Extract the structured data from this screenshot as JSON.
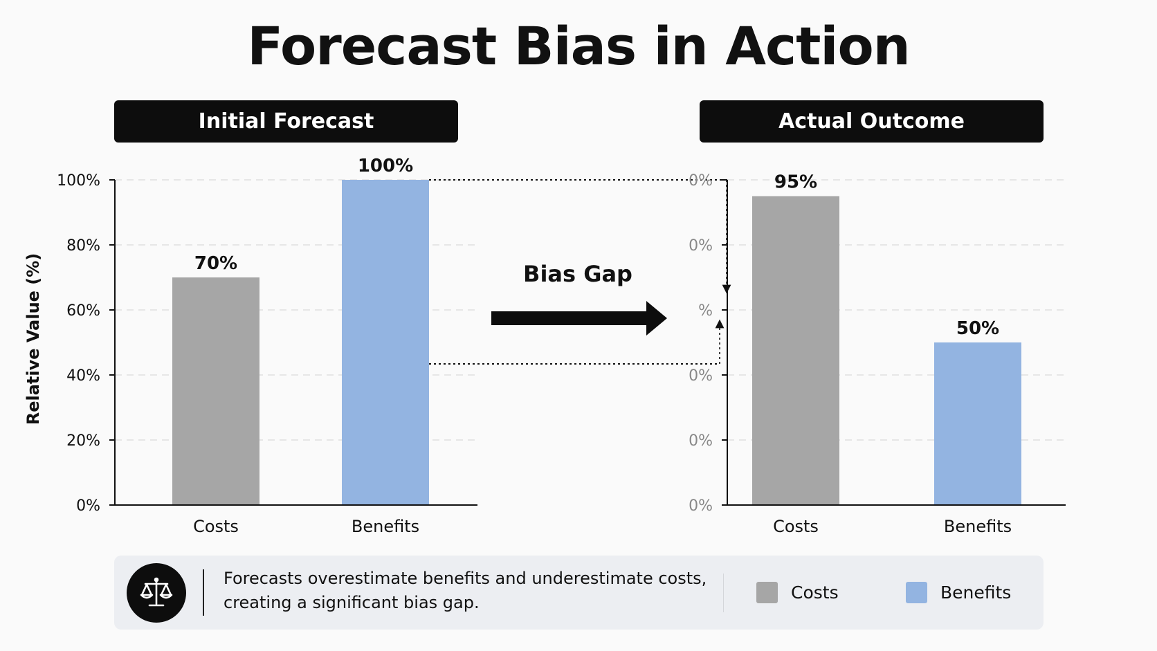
{
  "title": "Forecast Bias in Action",
  "panels": {
    "left_header": "Initial Forecast",
    "right_header": "Actual Outcome"
  },
  "annotation": {
    "gap_label": "Bias Gap"
  },
  "colors": {
    "costs": "#a6a6a6",
    "benefits": "#93b4e1",
    "header_bg": "#0d0d0d"
  },
  "footer": {
    "icon": "scales-icon",
    "text_line1": "Forecasts overestimate benefits and underestimate costs,",
    "text_line2": "creating a significant bias gap.",
    "legend": [
      {
        "label": "Costs",
        "color": "#a6a6a6"
      },
      {
        "label": "Benefits",
        "color": "#93b4e1"
      }
    ]
  },
  "chart_data": [
    {
      "type": "bar",
      "title": "Initial Forecast",
      "ylabel": "Relative Value (%)",
      "ylim": [
        0,
        100
      ],
      "yticks": [
        "0%",
        "20%",
        "40%",
        "60%",
        "80%",
        "100%"
      ],
      "categories": [
        "Costs",
        "Benefits"
      ],
      "values": [
        70,
        100
      ],
      "value_labels": [
        "70%",
        "100%"
      ],
      "grid": true
    },
    {
      "type": "bar",
      "title": "Actual Outcome",
      "ylim": [
        0,
        100
      ],
      "yticks": [
        "0%",
        "0%",
        "0%",
        "%",
        "0%",
        "0%"
      ],
      "categories": [
        "Costs",
        "Benefits"
      ],
      "values": [
        95,
        50
      ],
      "value_labels": [
        "95%",
        "50%"
      ],
      "grid": true
    }
  ]
}
